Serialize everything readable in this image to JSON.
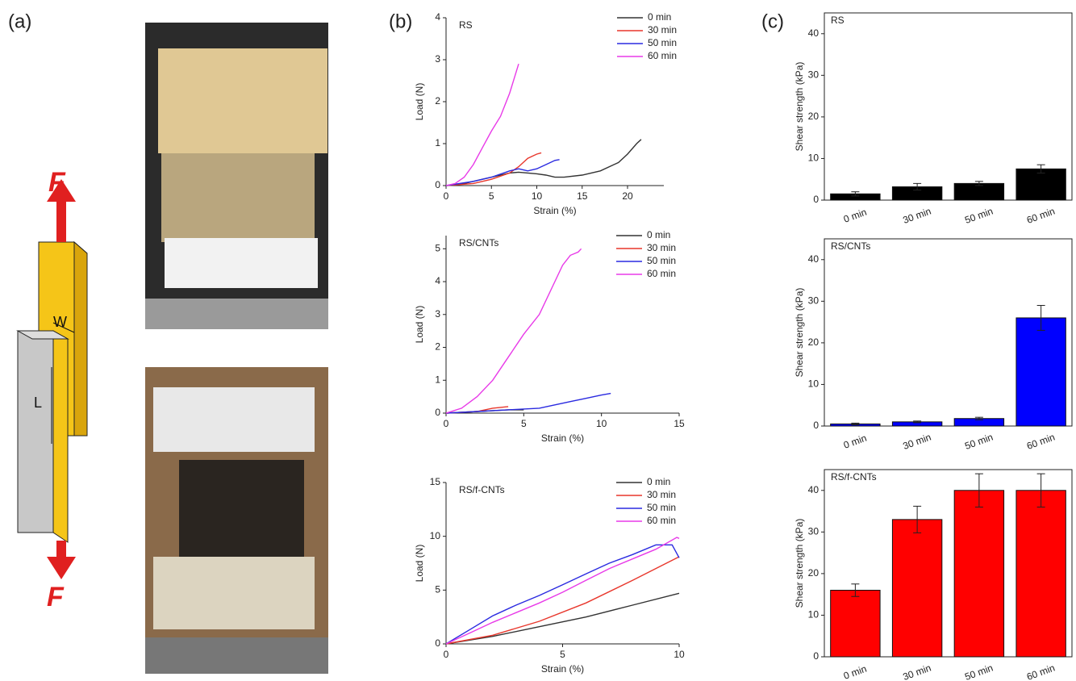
{
  "panel_labels": [
    "(a)",
    "(b)",
    "(c)"
  ],
  "diagram": {
    "force_top": "F",
    "force_bottom": "F",
    "width_label": "W",
    "length_label": "L"
  },
  "chart_data": [
    {
      "type": "line",
      "title": "RS",
      "xlabel": "Strain (%)",
      "ylabel": "Load (N)",
      "xlim": [
        0,
        24
      ],
      "xticks": [
        0,
        5,
        10,
        15,
        20
      ],
      "ylim": [
        0,
        4
      ],
      "yticks": [
        0,
        1,
        2,
        3,
        4
      ],
      "legend": "upper right",
      "series": [
        {
          "name": "0 min",
          "color": "#333333",
          "x": [
            0,
            2,
            4,
            6,
            7,
            8,
            9,
            10,
            11,
            12,
            13,
            15,
            17,
            19,
            20,
            21,
            21.5
          ],
          "values": [
            0,
            0.05,
            0.15,
            0.25,
            0.3,
            0.32,
            0.3,
            0.28,
            0.25,
            0.2,
            0.2,
            0.25,
            0.35,
            0.55,
            0.75,
            1.0,
            1.1
          ]
        },
        {
          "name": "30 min",
          "color": "#e8372c",
          "x": [
            0,
            3,
            5,
            7,
            8,
            9,
            10,
            10.5
          ],
          "values": [
            0,
            0.05,
            0.15,
            0.3,
            0.45,
            0.65,
            0.75,
            0.78
          ]
        },
        {
          "name": "50 min",
          "color": "#2a2ae0",
          "x": [
            0,
            3,
            5,
            7,
            8,
            9,
            10,
            11,
            12,
            12.5
          ],
          "values": [
            0,
            0.1,
            0.2,
            0.35,
            0.4,
            0.35,
            0.4,
            0.5,
            0.6,
            0.62
          ]
        },
        {
          "name": "60 min",
          "color": "#e83ae8",
          "x": [
            0,
            1,
            2,
            3,
            4,
            5,
            6,
            7,
            8
          ],
          "values": [
            0,
            0.05,
            0.2,
            0.5,
            0.9,
            1.3,
            1.65,
            2.2,
            2.9
          ]
        }
      ]
    },
    {
      "type": "line",
      "title": "RS/CNTs",
      "xlabel": "Strain (%)",
      "ylabel": "Load (N)",
      "xlim": [
        0,
        15
      ],
      "xticks": [
        0,
        5,
        10,
        15
      ],
      "ylim": [
        0,
        5.4
      ],
      "yticks": [
        0,
        1,
        2,
        3,
        4,
        5
      ],
      "legend": "upper right",
      "series": [
        {
          "name": "0 min",
          "color": "#333333",
          "x": [
            0,
            2,
            4,
            5
          ],
          "values": [
            0,
            0.05,
            0.1,
            0.1
          ]
        },
        {
          "name": "30 min",
          "color": "#e8372c",
          "x": [
            0,
            2,
            3,
            4
          ],
          "values": [
            0,
            0.05,
            0.15,
            0.2
          ]
        },
        {
          "name": "50 min",
          "color": "#2a2ae0",
          "x": [
            0,
            2,
            4,
            6,
            8,
            9,
            10,
            10.6
          ],
          "values": [
            0,
            0.05,
            0.1,
            0.15,
            0.35,
            0.45,
            0.55,
            0.6
          ]
        },
        {
          "name": "60 min",
          "color": "#e83ae8",
          "x": [
            0,
            1,
            2,
            3,
            4,
            5,
            6,
            7,
            7.5,
            8,
            8.5,
            8.7
          ],
          "values": [
            0,
            0.15,
            0.5,
            1,
            1.7,
            2.4,
            3.0,
            4.0,
            4.5,
            4.8,
            4.9,
            5.0
          ]
        }
      ]
    },
    {
      "type": "line",
      "title": "RS/f-CNTs",
      "xlabel": "Strain (%)",
      "ylabel": "Load (N)",
      "xlim": [
        0,
        10
      ],
      "xticks": [
        0,
        5,
        10
      ],
      "ylim": [
        0,
        15
      ],
      "yticks": [
        0,
        5,
        10,
        15
      ],
      "legend": "upper right",
      "series": [
        {
          "name": "0 min",
          "color": "#333333",
          "x": [
            0,
            2,
            4,
            6,
            8,
            10
          ],
          "values": [
            0,
            0.7,
            1.6,
            2.5,
            3.6,
            4.7
          ]
        },
        {
          "name": "30 min",
          "color": "#e8372c",
          "x": [
            0,
            2,
            4,
            6,
            8,
            10
          ],
          "values": [
            0,
            0.8,
            2.1,
            3.8,
            5.9,
            8.1
          ]
        },
        {
          "name": "50 min",
          "color": "#2a2ae0",
          "x": [
            0,
            1,
            2,
            3,
            4,
            5,
            6,
            7,
            8,
            9,
            9.7,
            10
          ],
          "values": [
            0,
            1.3,
            2.6,
            3.6,
            4.5,
            5.5,
            6.5,
            7.5,
            8.3,
            9.2,
            9.2,
            8.0
          ]
        },
        {
          "name": "60 min",
          "color": "#e83ae8",
          "x": [
            0,
            1,
            2,
            3,
            4,
            5,
            6,
            7,
            8,
            9,
            9.9,
            10
          ],
          "values": [
            0,
            1,
            2,
            2.9,
            3.8,
            4.8,
            5.9,
            7,
            7.9,
            8.8,
            9.9,
            9.8
          ]
        }
      ]
    },
    {
      "type": "bar",
      "title": "RS",
      "ylabel": "Shear strength (kPa)",
      "categories": [
        "0 min",
        "30 min",
        "50 min",
        "60 min"
      ],
      "values": [
        1.5,
        3.2,
        4,
        7.5
      ],
      "errors": [
        0.5,
        0.8,
        0.5,
        1
      ],
      "color": "#000000",
      "ylim": [
        0,
        45
      ],
      "yticks": [
        0,
        10,
        20,
        30,
        40
      ]
    },
    {
      "type": "bar",
      "title": "RS/CNTs",
      "ylabel": "Shear strength (kPa)",
      "categories": [
        "0 min",
        "30 min",
        "50 min",
        "60 min"
      ],
      "values": [
        0.5,
        1,
        1.8,
        26
      ],
      "errors": [
        0.2,
        0.2,
        0.3,
        3
      ],
      "color": "#0000ff",
      "ylim": [
        0,
        45
      ],
      "yticks": [
        0,
        10,
        20,
        30,
        40
      ]
    },
    {
      "type": "bar",
      "title": "RS/f-CNTs",
      "ylabel": "Shear strength (kPa)",
      "categories": [
        "0 min",
        "30 min",
        "50 min",
        "60 min"
      ],
      "values": [
        16,
        33,
        40,
        40
      ],
      "errors": [
        1.5,
        3.2,
        4,
        4
      ],
      "color": "#ff0000",
      "ylim": [
        0,
        45
      ],
      "yticks": [
        0,
        10,
        20,
        30,
        40
      ]
    }
  ]
}
